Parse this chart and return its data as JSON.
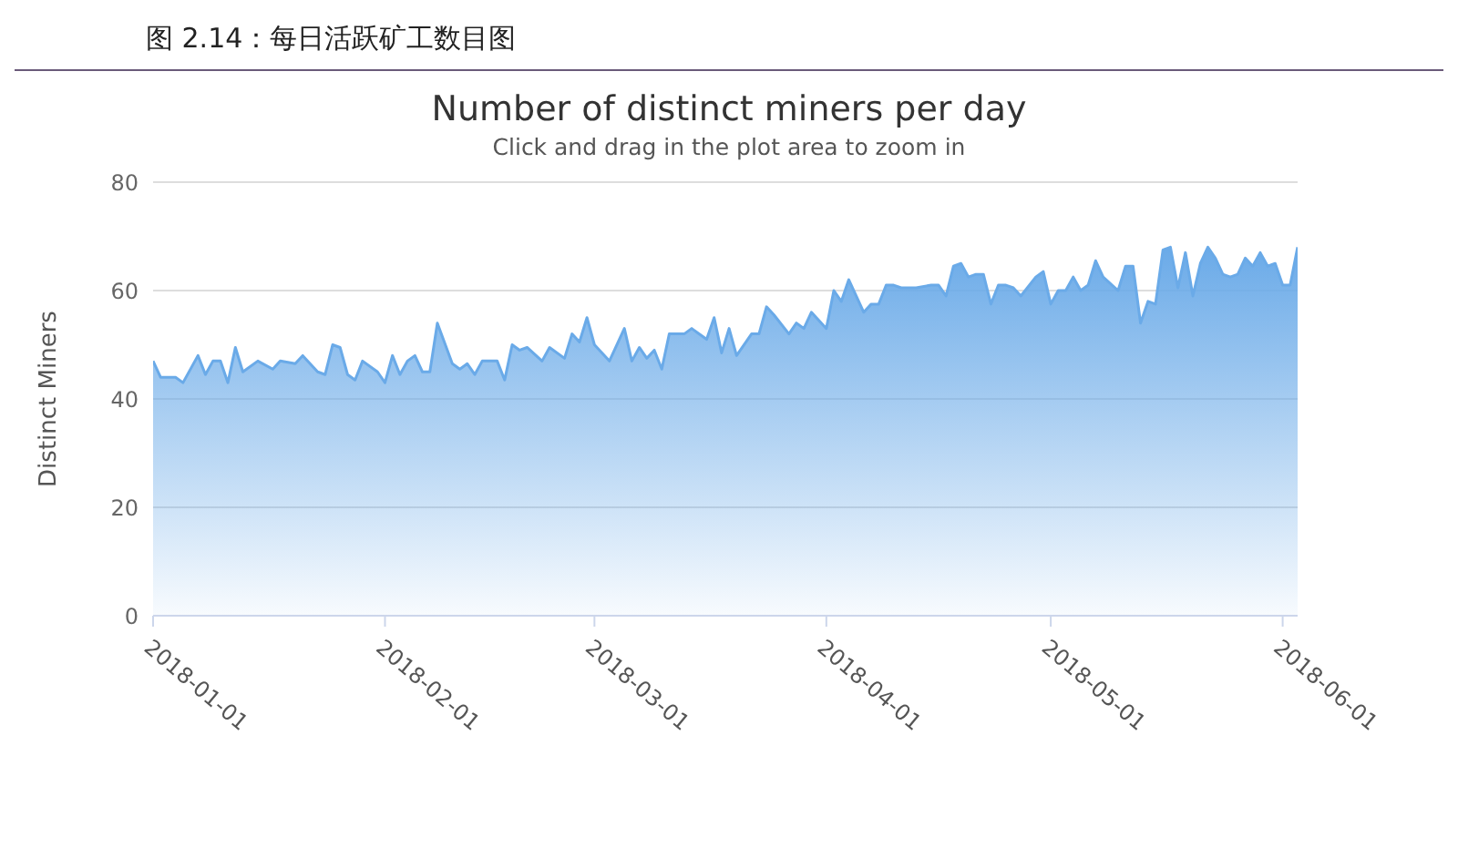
{
  "chart_data": {
    "type": "area",
    "title": "Number of distinct miners per day",
    "subtitle": "Click and drag in the plot area to zoom in",
    "ylabel": "Distinct Miners",
    "annotations": [
      "图 2.14：每日活跃矿工数目图"
    ],
    "x": [
      "2018-01-01",
      "2018-01-02",
      "2018-01-04",
      "2018-01-05",
      "2018-01-07",
      "2018-01-08",
      "2018-01-09",
      "2018-01-10",
      "2018-01-11",
      "2018-01-12",
      "2018-01-13",
      "2018-01-15",
      "2018-01-17",
      "2018-01-18",
      "2018-01-20",
      "2018-01-21",
      "2018-01-23",
      "2018-01-24",
      "2018-01-25",
      "2018-01-26",
      "2018-01-27",
      "2018-01-28",
      "2018-01-29",
      "2018-01-31",
      "2018-02-01",
      "2018-02-02",
      "2018-02-03",
      "2018-02-04",
      "2018-02-05",
      "2018-02-06",
      "2018-02-07",
      "2018-02-08",
      "2018-02-10",
      "2018-02-11",
      "2018-02-12",
      "2018-02-13",
      "2018-02-14",
      "2018-02-16",
      "2018-02-17",
      "2018-02-18",
      "2018-02-19",
      "2018-02-20",
      "2018-02-22",
      "2018-02-23",
      "2018-02-25",
      "2018-02-26",
      "2018-02-27",
      "2018-02-28",
      "2018-03-01",
      "2018-03-03",
      "2018-03-05",
      "2018-03-06",
      "2018-03-07",
      "2018-03-08",
      "2018-03-09",
      "2018-03-10",
      "2018-03-11",
      "2018-03-13",
      "2018-03-14",
      "2018-03-16",
      "2018-03-17",
      "2018-03-18",
      "2018-03-19",
      "2018-03-20",
      "2018-03-22",
      "2018-03-23",
      "2018-03-24",
      "2018-03-25",
      "2018-03-27",
      "2018-03-28",
      "2018-03-29",
      "2018-03-30",
      "2018-04-01",
      "2018-04-02",
      "2018-04-03",
      "2018-04-04",
      "2018-04-06",
      "2018-04-07",
      "2018-04-08",
      "2018-04-09",
      "2018-04-10",
      "2018-04-11",
      "2018-04-13",
      "2018-04-15",
      "2018-04-16",
      "2018-04-17",
      "2018-04-18",
      "2018-04-19",
      "2018-04-20",
      "2018-04-21",
      "2018-04-22",
      "2018-04-23",
      "2018-04-24",
      "2018-04-25",
      "2018-04-26",
      "2018-04-27",
      "2018-04-29",
      "2018-04-30",
      "2018-05-01",
      "2018-05-02",
      "2018-05-03",
      "2018-05-04",
      "2018-05-05",
      "2018-05-06",
      "2018-05-07",
      "2018-05-08",
      "2018-05-10",
      "2018-05-11",
      "2018-05-12",
      "2018-05-13",
      "2018-05-14",
      "2018-05-15",
      "2018-05-16",
      "2018-05-17",
      "2018-05-18",
      "2018-05-19",
      "2018-05-20",
      "2018-05-21",
      "2018-05-22",
      "2018-05-23",
      "2018-05-24",
      "2018-05-25",
      "2018-05-26",
      "2018-05-27",
      "2018-05-28",
      "2018-05-29",
      "2018-05-30",
      "2018-05-31",
      "2018-06-01",
      "2018-06-02",
      "2018-06-03"
    ],
    "series": [
      {
        "color": "#6aaae8",
        "values": [
          47,
          44,
          44,
          43,
          48,
          44.5,
          47,
          47,
          43,
          49.5,
          45,
          47,
          45.5,
          47,
          46.5,
          48,
          45,
          44.5,
          50,
          49.5,
          44.5,
          43.5,
          47,
          45,
          43,
          48,
          44.5,
          47,
          48,
          45,
          45,
          54,
          46.5,
          45.5,
          46.5,
          44.5,
          47,
          47,
          43.5,
          50,
          49,
          49.5,
          47,
          49.5,
          47.5,
          52,
          50.5,
          55,
          50,
          47,
          53,
          47,
          49.5,
          47.5,
          49,
          45.5,
          52,
          52,
          53,
          51,
          55,
          48.5,
          53,
          48,
          52,
          52,
          57,
          55.5,
          52,
          54,
          53,
          56,
          53,
          60,
          58,
          62,
          56,
          57.5,
          57.5,
          61,
          61,
          60.5,
          60.5,
          61,
          61,
          59,
          64.5,
          65,
          62.5,
          63,
          63,
          57.5,
          61,
          61,
          60.5,
          59,
          62.5,
          63.5,
          57.5,
          60,
          60,
          62.5,
          60,
          61,
          65.5,
          62.5,
          60,
          64.5,
          64.5,
          54,
          58,
          57.5,
          67.5,
          68,
          60.5,
          67,
          59,
          65,
          68,
          66,
          63,
          62.5,
          63,
          66,
          64.5,
          67,
          64.5,
          65,
          61,
          61,
          68
        ]
      }
    ],
    "xlim": [
      "2018-01-01",
      "2018-06-03"
    ],
    "xticks": [
      "2018-01-01",
      "2018-02-01",
      "2018-03-01",
      "2018-04-01",
      "2018-05-01",
      "2018-06-01"
    ],
    "ylim": [
      0,
      80
    ],
    "yticks": [
      0,
      20,
      40,
      60,
      80
    ],
    "grid": "y"
  }
}
